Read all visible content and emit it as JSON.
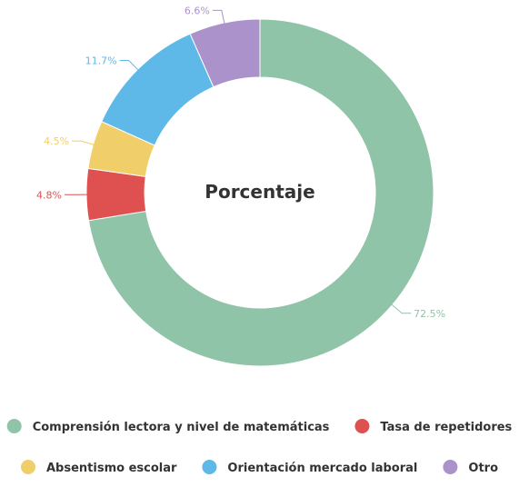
{
  "chart_data": {
    "type": "pie",
    "variant": "donut",
    "title": "Porcentaje",
    "slices": [
      {
        "label": "Comprensión lectora y nivel de matemáticas",
        "value": 72.5,
        "display": "72.5%",
        "color": "#8fc4a8"
      },
      {
        "label": "Tasa de repetidores",
        "value": 4.8,
        "display": "4.8%",
        "color": "#df5151"
      },
      {
        "label": "Absentismo escolar",
        "value": 4.5,
        "display": "4.5%",
        "color": "#f0cf6b"
      },
      {
        "label": "Orientación mercado laboral",
        "value": 11.7,
        "display": "11.7%",
        "color": "#5eb9e8"
      },
      {
        "label": "Otro",
        "value": 6.6,
        "display": "6.6%",
        "color": "#ab92cb"
      }
    ],
    "legend": {
      "position": "bottom",
      "rows": [
        [
          0,
          1
        ],
        [
          2,
          3,
          4
        ]
      ]
    }
  }
}
